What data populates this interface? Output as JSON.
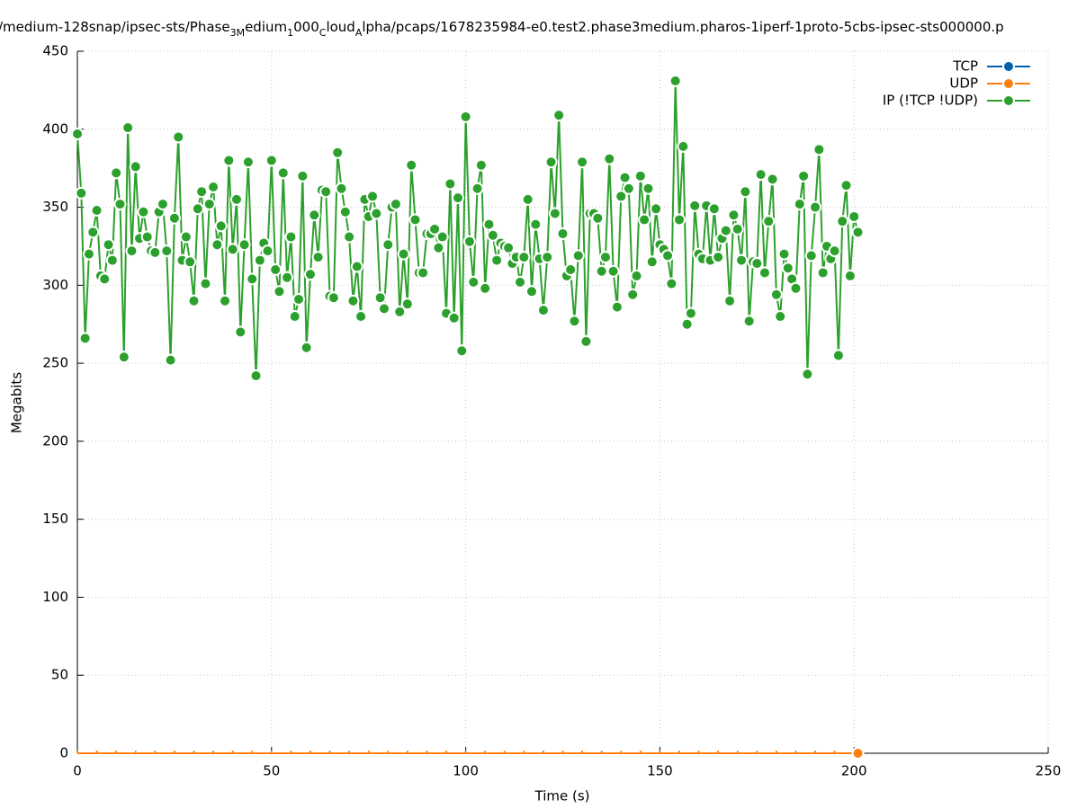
{
  "chart_data": {
    "type": "line",
    "title_parts": [
      "/medium-128snap/ipsec-sts/Phase",
      "3M",
      "edium",
      "1",
      "000",
      "C",
      "loud",
      "A",
      "lpha/pcaps/1678235984-e0.test2.phase3medium.pharos-1iperf-1proto-5cbs-ipsec-sts000000.p"
    ],
    "xlabel": "Time (s)",
    "ylabel": "Megabits",
    "xlim": [
      0,
      250
    ],
    "xticks": [
      0,
      50,
      100,
      150,
      200,
      250
    ],
    "ylim": [
      0,
      450
    ],
    "yticks": [
      0,
      50,
      100,
      150,
      200,
      250,
      300,
      350,
      400,
      450
    ],
    "grid": true,
    "legend": "top-right",
    "series": [
      {
        "name": "TCP",
        "color": "#0060ad",
        "x": [
          0,
          5,
          10,
          15,
          20,
          25,
          30,
          35,
          40,
          45,
          50,
          55,
          60,
          65,
          70,
          75,
          80,
          85,
          90,
          95,
          100,
          105,
          110,
          115,
          120,
          125,
          130,
          135,
          140,
          145,
          150,
          155,
          160,
          165,
          170,
          175,
          180,
          185,
          190,
          195,
          200,
          201
        ],
        "values": [
          0,
          0,
          0,
          0,
          0,
          0,
          0,
          0,
          0,
          0,
          0,
          0,
          0,
          0,
          0,
          0,
          0,
          0,
          0,
          0,
          0,
          0,
          0,
          0,
          0,
          0,
          0,
          0,
          0,
          0,
          0,
          0,
          0,
          0,
          0,
          0,
          0,
          0,
          0,
          0,
          0,
          0
        ]
      },
      {
        "name": "UDP",
        "color": "#ff7f0e",
        "x": [
          0,
          5,
          10,
          15,
          20,
          25,
          30,
          35,
          40,
          45,
          50,
          55,
          60,
          65,
          70,
          75,
          80,
          85,
          90,
          95,
          100,
          105,
          110,
          115,
          120,
          125,
          130,
          135,
          140,
          145,
          150,
          155,
          160,
          165,
          170,
          175,
          180,
          185,
          190,
          195,
          200,
          201
        ],
        "values": [
          0,
          0,
          0,
          0,
          0,
          0,
          0,
          0,
          0,
          0,
          0,
          0,
          0,
          0,
          0,
          0,
          0,
          0,
          0,
          0,
          0,
          0,
          0,
          0,
          0,
          0,
          0,
          0,
          0,
          0,
          0,
          0,
          0,
          0,
          0,
          0,
          0,
          0,
          0,
          0,
          0,
          0
        ]
      },
      {
        "name": "IP (!TCP  !UDP)",
        "color": "#2ca02c",
        "x": [
          0,
          1,
          2,
          3,
          4,
          5,
          6,
          7,
          8,
          9,
          10,
          11,
          12,
          13,
          14,
          15,
          16,
          17,
          18,
          19,
          20,
          21,
          22,
          23,
          24,
          25,
          26,
          27,
          28,
          29,
          30,
          31,
          32,
          33,
          34,
          35,
          36,
          37,
          38,
          39,
          40,
          41,
          42,
          43,
          44,
          45,
          46,
          47,
          48,
          49,
          50,
          51,
          52,
          53,
          54,
          55,
          56,
          57,
          58,
          59,
          60,
          61,
          62,
          63,
          64,
          65,
          66,
          67,
          68,
          69,
          70,
          71,
          72,
          73,
          74,
          75,
          76,
          77,
          78,
          79,
          80,
          81,
          82,
          83,
          84,
          85,
          86,
          87,
          88,
          89,
          90,
          91,
          92,
          93,
          94,
          95,
          96,
          97,
          98,
          99,
          100,
          101,
          102,
          103,
          104,
          105,
          106,
          107,
          108,
          109,
          110,
          111,
          112,
          113,
          114,
          115,
          116,
          117,
          118,
          119,
          120,
          121,
          122,
          123,
          124,
          125,
          126,
          127,
          128,
          129,
          130,
          131,
          132,
          133,
          134,
          135,
          136,
          137,
          138,
          139,
          140,
          141,
          142,
          143,
          144,
          145,
          146,
          147,
          148,
          149,
          150,
          151,
          152,
          153,
          154,
          155,
          156,
          157,
          158,
          159,
          160,
          161,
          162,
          163,
          164,
          165,
          166,
          167,
          168,
          169,
          170,
          171,
          172,
          173,
          174,
          175,
          176,
          177,
          178,
          179,
          180,
          181,
          182,
          183,
          184,
          185,
          186,
          187,
          188,
          189,
          190,
          191,
          192,
          193,
          194,
          195,
          196,
          197,
          198,
          199,
          200,
          201
        ],
        "values": [
          397,
          359,
          266,
          320,
          334,
          348,
          306,
          304,
          326,
          316,
          372,
          352,
          254,
          401,
          322,
          376,
          330,
          347,
          331,
          322,
          321,
          347,
          352,
          322,
          252,
          343,
          395,
          316,
          331,
          315,
          290,
          349,
          360,
          301,
          352,
          363,
          326,
          338,
          290,
          380,
          323,
          355,
          270,
          326,
          379,
          304,
          242,
          316,
          327,
          322,
          380,
          310,
          296,
          372,
          305,
          331,
          280,
          291,
          370,
          260,
          307,
          345,
          318,
          361,
          360,
          293,
          292,
          385,
          362,
          347,
          331,
          290,
          312,
          280,
          355,
          344,
          357,
          346,
          292,
          285,
          326,
          350,
          352,
          283,
          320,
          288,
          377,
          342,
          308,
          308,
          333,
          333,
          336,
          324,
          331,
          282,
          365,
          279,
          356,
          258,
          408,
          328,
          302,
          362,
          377,
          298,
          339,
          332,
          316,
          327,
          325,
          324,
          314,
          318,
          302,
          318,
          355,
          296,
          339,
          317,
          284,
          318,
          379,
          346,
          409,
          333,
          306,
          310,
          277,
          319,
          379,
          264,
          346,
          346,
          343,
          309,
          318,
          381,
          309,
          286,
          357,
          369,
          362,
          294,
          306,
          370,
          342,
          362,
          315,
          349,
          326,
          323,
          319,
          301,
          431,
          342,
          389,
          275,
          282,
          351,
          320,
          317,
          351,
          316,
          349,
          318,
          330,
          335,
          290,
          345,
          336,
          316,
          360,
          277,
          315,
          314,
          371,
          308,
          341,
          368,
          294,
          280,
          320,
          311,
          304,
          298,
          352,
          370,
          243,
          319,
          350,
          387,
          308,
          325,
          317,
          322,
          255,
          341,
          364,
          306,
          344,
          334
        ]
      }
    ]
  }
}
